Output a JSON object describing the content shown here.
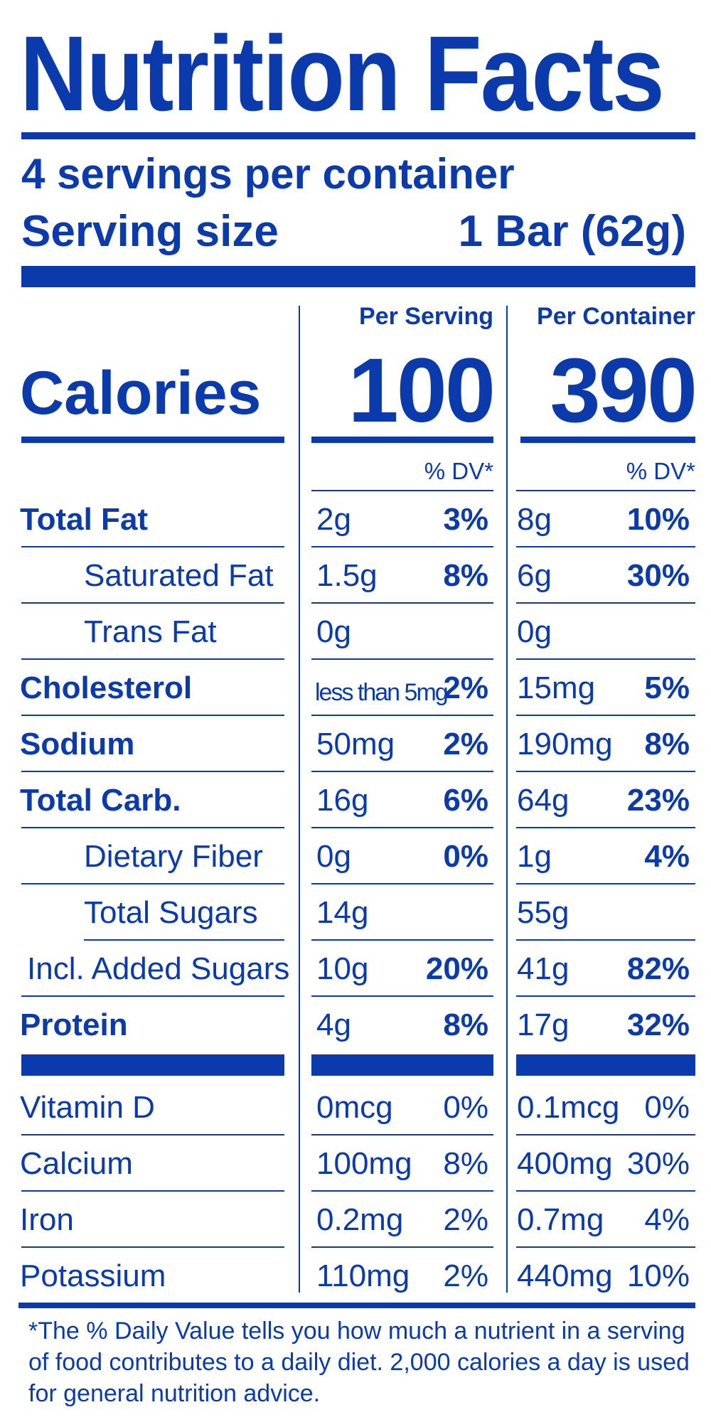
{
  "title": "Nutrition Facts",
  "servings_per_container": "4 servings per container",
  "serving_size_label": "Serving size",
  "serving_size_value": "1 Bar (62g)",
  "columns": {
    "per_serving": "Per Serving",
    "per_container": "Per Container"
  },
  "calories": {
    "label": "Calories",
    "per_serving": "100",
    "per_container": "390"
  },
  "dv_header": "% DV*",
  "nutrients": [
    {
      "name": "Total Fat",
      "serving_amount": "2g",
      "serving_dv": "3%",
      "container_amount": "8g",
      "container_dv": "10%"
    },
    {
      "name": "Saturated Fat",
      "serving_amount": "1.5g",
      "serving_dv": "8%",
      "container_amount": "6g",
      "container_dv": "30%"
    },
    {
      "name": "Trans Fat",
      "serving_amount": "0g",
      "serving_dv": "",
      "container_amount": "0g",
      "container_dv": ""
    },
    {
      "name": "Cholesterol",
      "serving_amount": "less than 5mg",
      "serving_dv": "2%",
      "container_amount": "15mg",
      "container_dv": "5%"
    },
    {
      "name": "Sodium",
      "serving_amount": "50mg",
      "serving_dv": "2%",
      "container_amount": "190mg",
      "container_dv": "8%"
    },
    {
      "name": "Total Carb.",
      "serving_amount": "16g",
      "serving_dv": "6%",
      "container_amount": "64g",
      "container_dv": "23%"
    },
    {
      "name": "Dietary Fiber",
      "serving_amount": "0g",
      "serving_dv": "0%",
      "container_amount": "1g",
      "container_dv": "4%"
    },
    {
      "name": "Total Sugars",
      "serving_amount": "14g",
      "serving_dv": "",
      "container_amount": "55g",
      "container_dv": ""
    },
    {
      "name": "Incl. Added Sugars",
      "serving_amount": "10g",
      "serving_dv": "20%",
      "container_amount": "41g",
      "container_dv": "82%"
    },
    {
      "name": "Protein",
      "serving_amount": "4g",
      "serving_dv": "8%",
      "container_amount": "17g",
      "container_dv": "32%"
    }
  ],
  "vitamins": [
    {
      "name": "Vitamin D",
      "serving_amount": "0mcg",
      "serving_dv": "0%",
      "container_amount": "0.1mcg",
      "container_dv": "0%"
    },
    {
      "name": "Calcium",
      "serving_amount": "100mg",
      "serving_dv": "8%",
      "container_amount": "400mg",
      "container_dv": "30%"
    },
    {
      "name": "Iron",
      "serving_amount": "0.2mg",
      "serving_dv": "2%",
      "container_amount": "0.7mg",
      "container_dv": "4%"
    },
    {
      "name": "Potassium",
      "serving_amount": "110mg",
      "serving_dv": "2%",
      "container_amount": "440mg",
      "container_dv": "10%"
    }
  ],
  "footnote": "*The % Daily Value tells you how much a nutrient in a serving of food contributes to a daily diet. 2,000 calories a day is used for general nutrition advice.",
  "colors": {
    "ink": "#0b3aad",
    "background": "#ffffff"
  }
}
